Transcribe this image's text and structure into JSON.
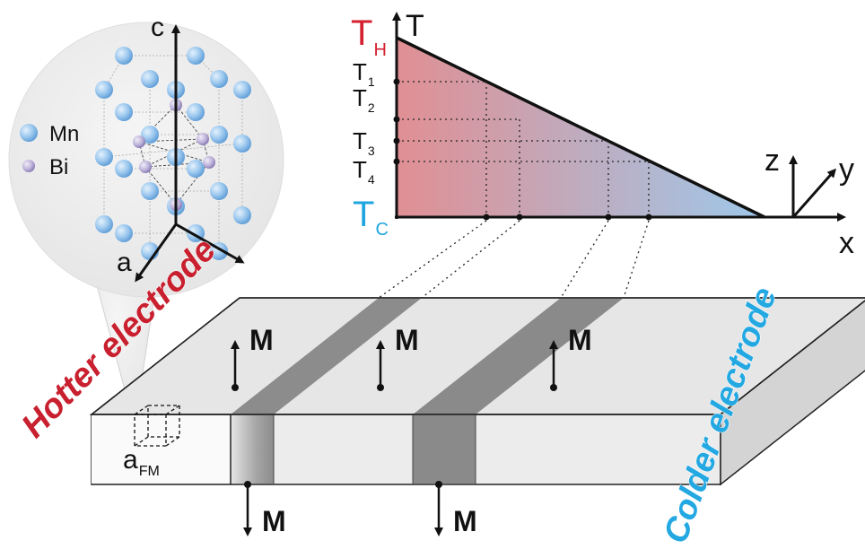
{
  "crystal": {
    "axis_c": "c",
    "axis_a": "a",
    "legend": [
      {
        "symbol": "mn-atom",
        "label": "Mn",
        "color": "#8fc1ea"
      },
      {
        "symbol": "bi-atom",
        "label": "Bi",
        "color": "#b9b1d6"
      }
    ]
  },
  "graph": {
    "y_axis_label": "T",
    "x_axis_label": "x",
    "t_hot": {
      "main": "T",
      "sub": "H",
      "color": "#d4212f"
    },
    "t_cold": {
      "main": "T",
      "sub": "C",
      "color": "#1fa6e0"
    },
    "temperature_levels": [
      {
        "main": "T",
        "sub": "1"
      },
      {
        "main": "T",
        "sub": "2"
      },
      {
        "main": "T",
        "sub": "3"
      },
      {
        "main": "T",
        "sub": "4"
      }
    ],
    "gradient_hot": "#e08f93",
    "gradient_cold": "#9ec8ea"
  },
  "frame": {
    "z": "z",
    "y": "y"
  },
  "slab": {
    "hotter_label": "Hotter electrode",
    "hotter_color": "#c8202f",
    "colder_label": "Colder electrode",
    "colder_color": "#23a8e2",
    "cell_label": {
      "main": "a",
      "sub": "FM"
    },
    "magnetization_label": "M",
    "magnetization": [
      "up",
      "up",
      "up",
      "down",
      "down"
    ]
  }
}
